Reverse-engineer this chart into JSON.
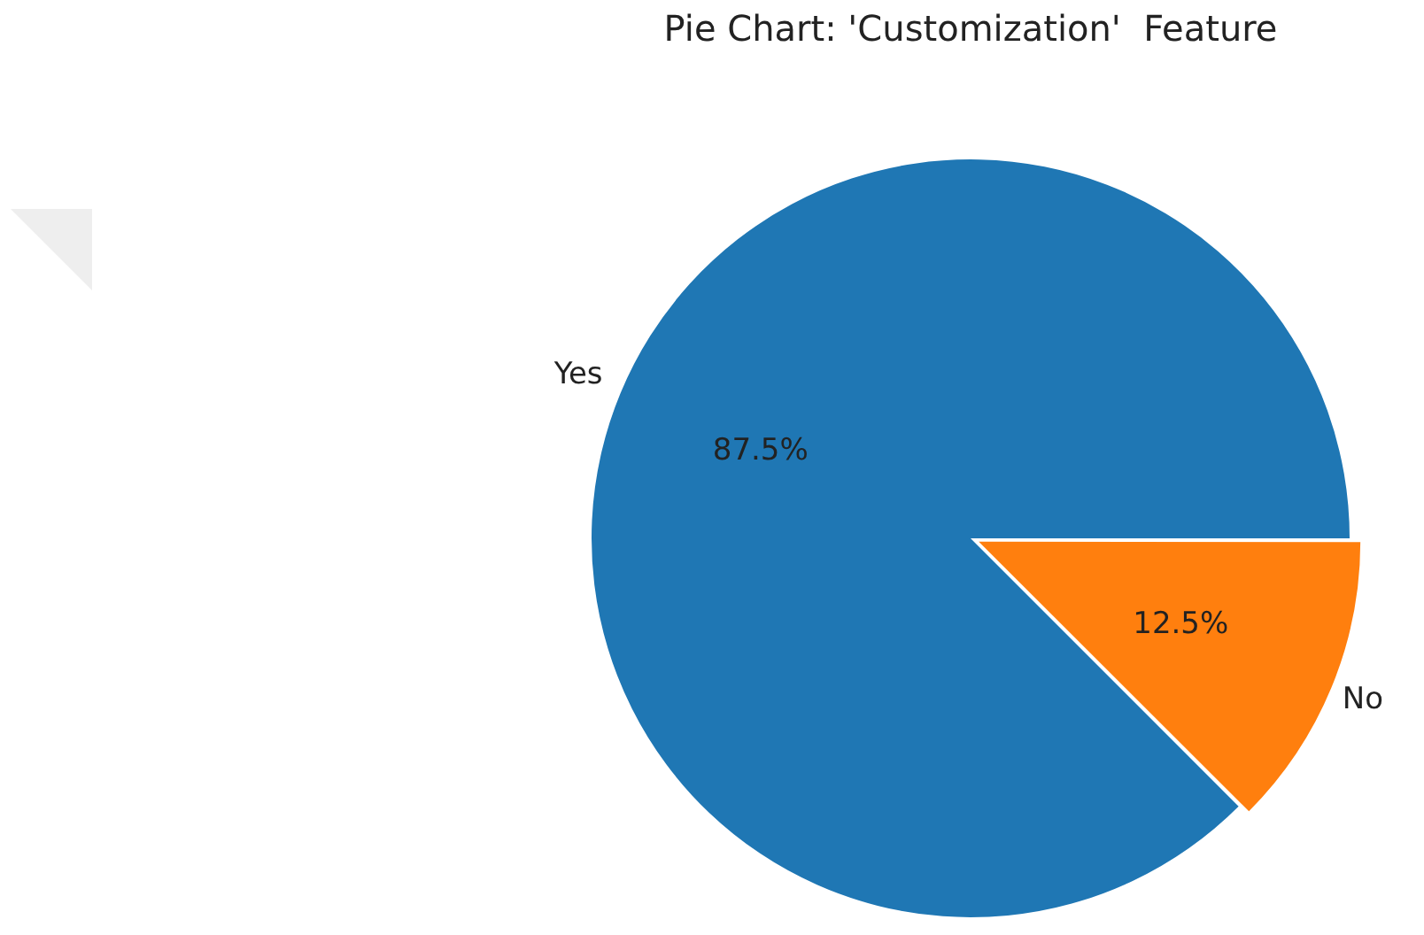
{
  "chart_data": {
    "type": "pie",
    "title": "Pie Chart: 'Customization'  Feature",
    "categories": [
      "Yes",
      "No"
    ],
    "values": [
      87.5,
      12.5
    ],
    "colors": [
      "#1f77b4",
      "#ff7f0e"
    ],
    "value_labels": [
      "87.5%",
      "12.5%"
    ],
    "legend": false
  }
}
